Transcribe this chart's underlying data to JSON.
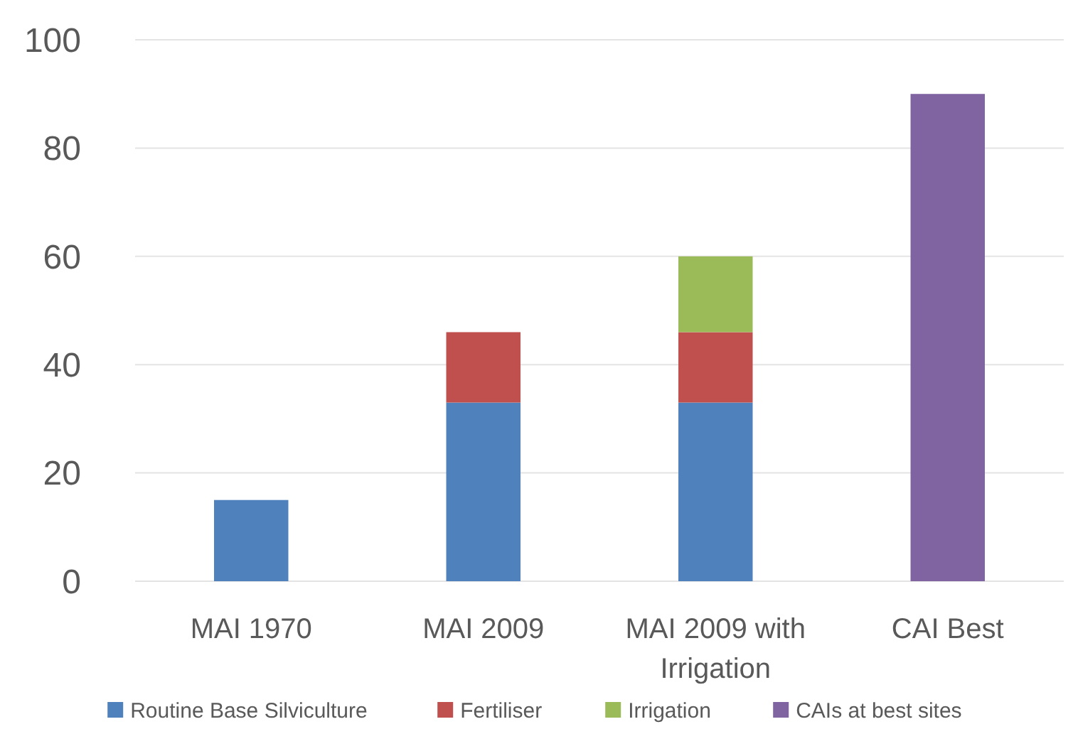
{
  "chart_data": {
    "type": "bar",
    "stacked": true,
    "categories": [
      "MAI 1970",
      "MAI 2009",
      "MAI 2009 with Irrigation",
      "CAI Best"
    ],
    "series": [
      {
        "name": "Routine Base Silviculture",
        "color": "#4f81bd",
        "values": [
          15,
          33,
          33,
          null
        ]
      },
      {
        "name": "Fertiliser",
        "color": "#c0504d",
        "values": [
          null,
          13,
          13,
          null
        ]
      },
      {
        "name": "Irrigation",
        "color": "#9bbb59",
        "values": [
          null,
          null,
          14,
          null
        ]
      },
      {
        "name": "CAIs at best sites",
        "color": "#8064a2",
        "values": [
          null,
          null,
          null,
          90
        ]
      }
    ],
    "ylim": [
      0,
      100
    ],
    "yticks": [
      0,
      20,
      40,
      60,
      80,
      100
    ],
    "grid": "y",
    "legend": "bottom"
  }
}
